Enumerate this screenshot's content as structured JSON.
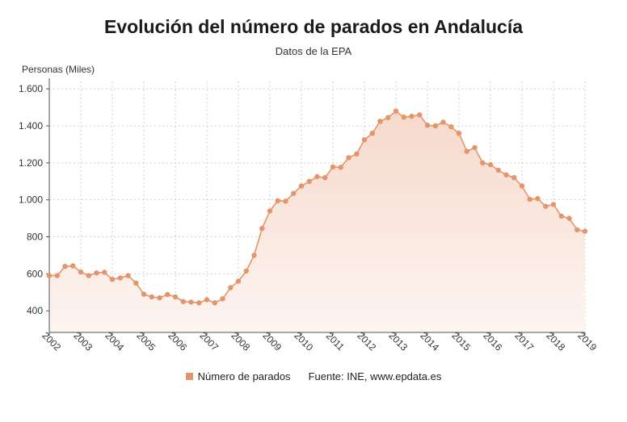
{
  "header": {
    "title": "Evolución del número de parados en Andalucía",
    "subtitle": "Datos de la EPA"
  },
  "legend": {
    "series_label": "Número de parados",
    "source": "Fuente: INE, www.epdata.es"
  },
  "colors": {
    "line": "#e3956b",
    "marker": "#e3956b",
    "fill_top": "#f6d9cc",
    "fill_bottom": "#fdf5f1",
    "grid": "#cfcfcf",
    "axis": "#555555"
  },
  "chart_data": {
    "type": "line",
    "ylabel": "Personas (Miles)",
    "ylim": [
      283,
      1640
    ],
    "xlim": [
      2002,
      2019
    ],
    "y_ticks": [
      400,
      600,
      800,
      1000,
      1200,
      1400,
      1600
    ],
    "y_tick_labels": [
      "400",
      "600",
      "800",
      "1.000",
      "1.200",
      "1.400",
      "1.600"
    ],
    "x_ticks": [
      2002,
      2003,
      2004,
      2005,
      2006,
      2007,
      2008,
      2009,
      2010,
      2011,
      2012,
      2013,
      2014,
      2015,
      2016,
      2017,
      2018,
      2019
    ],
    "x_tick_labels": [
      "2002",
      "2003",
      "2004",
      "2005",
      "2006",
      "2007",
      "2008",
      "2009",
      "2010",
      "2011",
      "2012",
      "2013",
      "2014",
      "2015",
      "2016",
      "2017",
      "2018",
      "2019"
    ],
    "grid": true,
    "legend_position": "bottom",
    "series": [
      {
        "name": "Número de parados",
        "x": [
          2002,
          2002.25,
          2002.5,
          2002.75,
          2003,
          2003.25,
          2003.5,
          2003.75,
          2004,
          2004.25,
          2004.5,
          2004.75,
          2005,
          2005.25,
          2005.5,
          2005.75,
          2006,
          2006.25,
          2006.5,
          2006.75,
          2007,
          2007.25,
          2007.5,
          2007.75,
          2008,
          2008.25,
          2008.5,
          2008.75,
          2009,
          2009.25,
          2009.5,
          2009.75,
          2010,
          2010.25,
          2010.5,
          2010.75,
          2011,
          2011.25,
          2011.5,
          2011.75,
          2012,
          2012.25,
          2012.5,
          2012.75,
          2013,
          2013.25,
          2013.5,
          2013.75,
          2014,
          2014.25,
          2014.5,
          2014.75,
          2015,
          2015.25,
          2015.5,
          2015.75,
          2016,
          2016.25,
          2016.5,
          2016.75,
          2017,
          2017.25,
          2017.5,
          2017.75,
          2018,
          2018.25,
          2018.5,
          2018.75,
          2019
        ],
        "values": [
          590,
          590,
          640,
          643,
          610,
          590,
          605,
          608,
          570,
          578,
          590,
          550,
          490,
          475,
          470,
          488,
          475,
          450,
          447,
          443,
          460,
          443,
          465,
          525,
          560,
          615,
          700,
          845,
          940,
          995,
          993,
          1035,
          1075,
          1100,
          1125,
          1120,
          1178,
          1176,
          1228,
          1248,
          1325,
          1360,
          1425,
          1445,
          1480,
          1447,
          1452,
          1460,
          1403,
          1400,
          1420,
          1395,
          1360,
          1262,
          1282,
          1200,
          1190,
          1160,
          1135,
          1120,
          1075,
          1003,
          1007,
          965,
          975,
          912,
          900,
          838,
          830
        ]
      }
    ]
  }
}
